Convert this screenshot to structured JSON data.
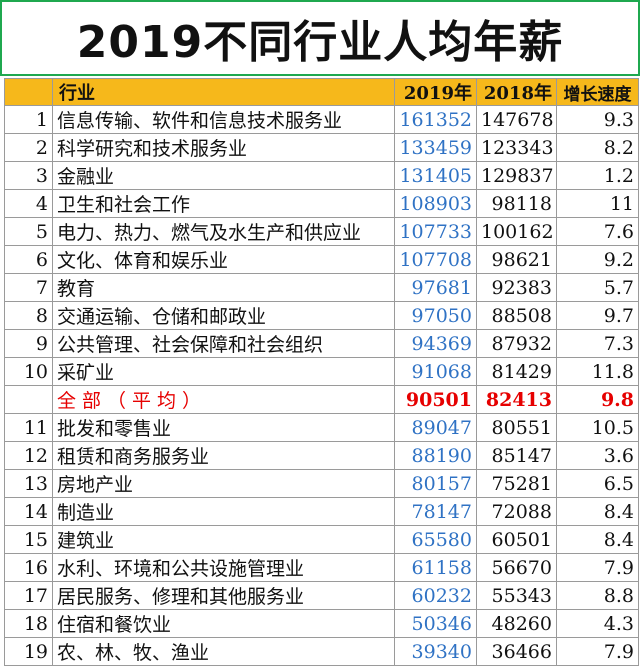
{
  "title": "2019不同行业人均年薪",
  "table": {
    "headers": {
      "industry": "行业",
      "y2019": "2019年",
      "y2018": "2018年",
      "growth": "增长速度"
    },
    "rows": [
      {
        "rank": "1",
        "industry": "信息传输、软件和信息技术服务业",
        "y2019": "161352",
        "y2018": "147678",
        "growth": "9.3"
      },
      {
        "rank": "2",
        "industry": "科学研究和技术服务业",
        "y2019": "133459",
        "y2018": "123343",
        "growth": "8.2"
      },
      {
        "rank": "3",
        "industry": "金融业",
        "y2019": "131405",
        "y2018": "129837",
        "growth": "1.2"
      },
      {
        "rank": "4",
        "industry": "卫生和社会工作",
        "y2019": "108903",
        "y2018": "98118",
        "growth": "11"
      },
      {
        "rank": "5",
        "industry": "电力、热力、燃气及水生产和供应业",
        "y2019": "107733",
        "y2018": "100162",
        "growth": "7.6"
      },
      {
        "rank": "6",
        "industry": "文化、体育和娱乐业",
        "y2019": "107708",
        "y2018": "98621",
        "growth": "9.2"
      },
      {
        "rank": "7",
        "industry": "教育",
        "y2019": "97681",
        "y2018": "92383",
        "growth": "5.7"
      },
      {
        "rank": "8",
        "industry": "交通运输、仓储和邮政业",
        "y2019": "97050",
        "y2018": "88508",
        "growth": "9.7"
      },
      {
        "rank": "9",
        "industry": "公共管理、社会保障和社会组织",
        "y2019": "94369",
        "y2018": "87932",
        "growth": "7.3"
      },
      {
        "rank": "10",
        "industry": "采矿业",
        "y2019": "91068",
        "y2018": "81429",
        "growth": "11.8"
      },
      {
        "rank": "",
        "industry": "全部（平均）",
        "y2019": "90501",
        "y2018": "82413",
        "growth": "9.8"
      },
      {
        "rank": "11",
        "industry": "批发和零售业",
        "y2019": "89047",
        "y2018": "80551",
        "growth": "10.5"
      },
      {
        "rank": "12",
        "industry": "租赁和商务服务业",
        "y2019": "88190",
        "y2018": "85147",
        "growth": "3.6"
      },
      {
        "rank": "13",
        "industry": "房地产业",
        "y2019": "80157",
        "y2018": "75281",
        "growth": "6.5"
      },
      {
        "rank": "14",
        "industry": "制造业",
        "y2019": "78147",
        "y2018": "72088",
        "growth": "8.4"
      },
      {
        "rank": "15",
        "industry": "建筑业",
        "y2019": "65580",
        "y2018": "60501",
        "growth": "8.4"
      },
      {
        "rank": "16",
        "industry": "水利、环境和公共设施管理业",
        "y2019": "61158",
        "y2018": "56670",
        "growth": "7.9"
      },
      {
        "rank": "17",
        "industry": "居民服务、修理和其他服务业",
        "y2019": "60232",
        "y2018": "55343",
        "growth": "8.8"
      },
      {
        "rank": "18",
        "industry": "住宿和餐饮业",
        "y2019": "50346",
        "y2018": "48260",
        "growth": "4.3"
      },
      {
        "rank": "19",
        "industry": "农、林、牧、渔业",
        "y2019": "39340",
        "y2018": "36466",
        "growth": "7.9"
      }
    ]
  },
  "colors": {
    "header_bg": "#f6b81b",
    "value_2019": "#2f72c4",
    "average_row": "#e60000",
    "title_border": "#1fa84f"
  }
}
